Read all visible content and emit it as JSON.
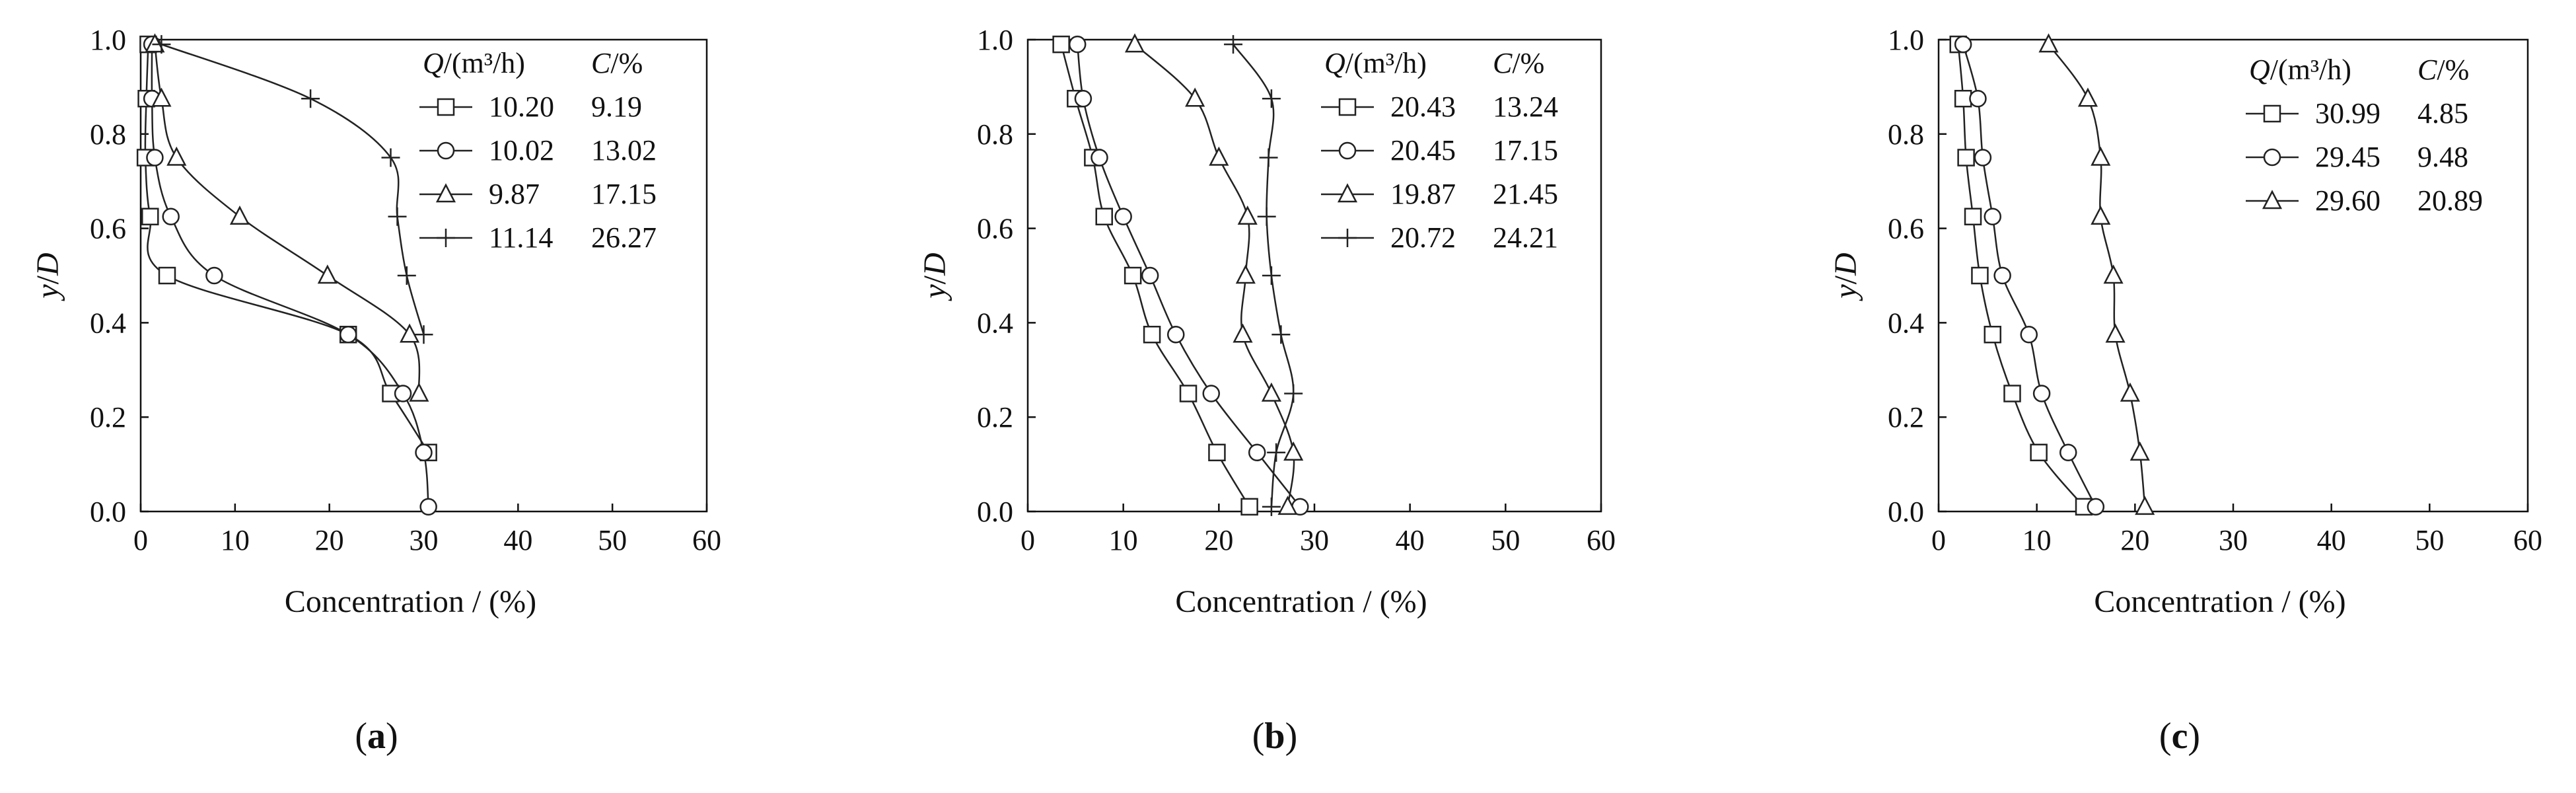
{
  "chart_data": [
    {
      "type": "line",
      "panel_label": "(a)",
      "xlabel": "Concentration / (%)",
      "ylabel": "y/D",
      "xlim": [
        0,
        60
      ],
      "ylim": [
        0,
        1
      ],
      "xticks": [
        "0",
        "10",
        "20",
        "30",
        "40",
        "50",
        "60"
      ],
      "yticks": [
        "0.0",
        "0.2",
        "0.4",
        "0.6",
        "0.8",
        "1.0"
      ],
      "legend_position": "top-right",
      "legend_header": {
        "q": "Q/(m³/h)",
        "c": "C/%"
      },
      "series": [
        {
          "q": "10.20",
          "c": "9.19",
          "marker": "square",
          "points": [
            [
              30.5,
              0.125
            ],
            [
              26.5,
              0.25
            ],
            [
              22.0,
              0.375
            ],
            [
              2.8,
              0.5
            ],
            [
              1.0,
              0.625
            ],
            [
              0.5,
              0.75
            ],
            [
              0.6,
              0.875
            ],
            [
              0.8,
              0.99
            ]
          ]
        },
        {
          "q": "10.02",
          "c": "13.02",
          "marker": "circle",
          "points": [
            [
              30.5,
              0.01
            ],
            [
              30.0,
              0.125
            ],
            [
              27.8,
              0.25
            ],
            [
              22.0,
              0.375
            ],
            [
              7.8,
              0.5
            ],
            [
              3.2,
              0.625
            ],
            [
              1.5,
              0.75
            ],
            [
              1.2,
              0.875
            ],
            [
              1.2,
              0.99
            ]
          ]
        },
        {
          "q": "9.87",
          "c": "17.15",
          "marker": "triangle",
          "points": [
            [
              29.5,
              0.25
            ],
            [
              28.5,
              0.375
            ],
            [
              19.8,
              0.5
            ],
            [
              10.5,
              0.625
            ],
            [
              3.8,
              0.75
            ],
            [
              2.2,
              0.875
            ],
            [
              1.5,
              0.99
            ]
          ]
        },
        {
          "q": "11.14",
          "c": "26.27",
          "marker": "plus",
          "points": [
            [
              30.0,
              0.375
            ],
            [
              28.2,
              0.5
            ],
            [
              27.2,
              0.625
            ],
            [
              26.5,
              0.75
            ],
            [
              18.0,
              0.875
            ],
            [
              2.2,
              0.99
            ]
          ]
        }
      ]
    },
    {
      "type": "line",
      "panel_label": "(b)",
      "xlabel": "Concentration / (%)",
      "ylabel": "y/D",
      "xlim": [
        0,
        60
      ],
      "ylim": [
        0,
        1
      ],
      "xticks": [
        "0",
        "10",
        "20",
        "30",
        "40",
        "50",
        "60"
      ],
      "yticks": [
        "0.0",
        "0.2",
        "0.4",
        "0.6",
        "0.8",
        "1.0"
      ],
      "legend_position": "top-right",
      "legend_header": {
        "q": "Q/(m³/h)",
        "c": "C/%"
      },
      "series": [
        {
          "q": "20.43",
          "c": "13.24",
          "marker": "square",
          "points": [
            [
              23.2,
              0.01
            ],
            [
              19.8,
              0.125
            ],
            [
              16.8,
              0.25
            ],
            [
              13.0,
              0.375
            ],
            [
              11.0,
              0.5
            ],
            [
              8.0,
              0.625
            ],
            [
              6.8,
              0.75
            ],
            [
              5.0,
              0.875
            ],
            [
              3.5,
              0.99
            ]
          ]
        },
        {
          "q": "20.45",
          "c": "17.15",
          "marker": "circle",
          "points": [
            [
              28.5,
              0.01
            ],
            [
              24.0,
              0.125
            ],
            [
              19.2,
              0.25
            ],
            [
              15.5,
              0.375
            ],
            [
              12.8,
              0.5
            ],
            [
              10.0,
              0.625
            ],
            [
              7.5,
              0.75
            ],
            [
              5.8,
              0.875
            ],
            [
              5.2,
              0.99
            ]
          ]
        },
        {
          "q": "19.87",
          "c": "21.45",
          "marker": "triangle",
          "points": [
            [
              27.2,
              0.01
            ],
            [
              27.8,
              0.125
            ],
            [
              25.5,
              0.25
            ],
            [
              22.5,
              0.375
            ],
            [
              22.8,
              0.5
            ],
            [
              23.0,
              0.625
            ],
            [
              20.0,
              0.75
            ],
            [
              17.5,
              0.875
            ],
            [
              11.2,
              0.99
            ]
          ]
        },
        {
          "q": "20.72",
          "c": "24.21",
          "marker": "plus",
          "points": [
            [
              25.5,
              0.01
            ],
            [
              26.0,
              0.125
            ],
            [
              27.8,
              0.25
            ],
            [
              26.5,
              0.375
            ],
            [
              25.5,
              0.5
            ],
            [
              25.0,
              0.625
            ],
            [
              25.2,
              0.75
            ],
            [
              25.5,
              0.875
            ],
            [
              21.5,
              0.99
            ]
          ]
        }
      ]
    },
    {
      "type": "line",
      "panel_label": "(c)",
      "xlabel": "Concentration / (%)",
      "ylabel": "y/D",
      "xlim": [
        0,
        60
      ],
      "ylim": [
        0,
        1
      ],
      "xticks": [
        "0",
        "10",
        "20",
        "30",
        "40",
        "50",
        "60"
      ],
      "yticks": [
        "0.0",
        "0.2",
        "0.4",
        "0.6",
        "0.8",
        "1.0"
      ],
      "legend_position": "top-right",
      "legend_header": {
        "q": "Q/(m³/h)",
        "c": "C/%"
      },
      "series": [
        {
          "q": "30.99",
          "c": "4.85",
          "marker": "square",
          "points": [
            [
              14.8,
              0.01
            ],
            [
              10.2,
              0.125
            ],
            [
              7.5,
              0.25
            ],
            [
              5.5,
              0.375
            ],
            [
              4.2,
              0.5
            ],
            [
              3.5,
              0.625
            ],
            [
              2.8,
              0.75
            ],
            [
              2.5,
              0.875
            ],
            [
              2.0,
              0.99
            ]
          ]
        },
        {
          "q": "29.45",
          "c": "9.48",
          "marker": "circle",
          "points": [
            [
              16.0,
              0.01
            ],
            [
              13.2,
              0.125
            ],
            [
              10.5,
              0.25
            ],
            [
              9.2,
              0.375
            ],
            [
              6.5,
              0.5
            ],
            [
              5.5,
              0.625
            ],
            [
              4.5,
              0.75
            ],
            [
              4.0,
              0.875
            ],
            [
              2.5,
              0.99
            ]
          ]
        },
        {
          "q": "29.60",
          "c": "20.89",
          "marker": "triangle",
          "points": [
            [
              21.0,
              0.01
            ],
            [
              20.5,
              0.125
            ],
            [
              19.5,
              0.25
            ],
            [
              18.0,
              0.375
            ],
            [
              17.8,
              0.5
            ],
            [
              16.5,
              0.625
            ],
            [
              16.5,
              0.75
            ],
            [
              15.2,
              0.875
            ],
            [
              11.2,
              0.99
            ]
          ]
        }
      ]
    }
  ]
}
